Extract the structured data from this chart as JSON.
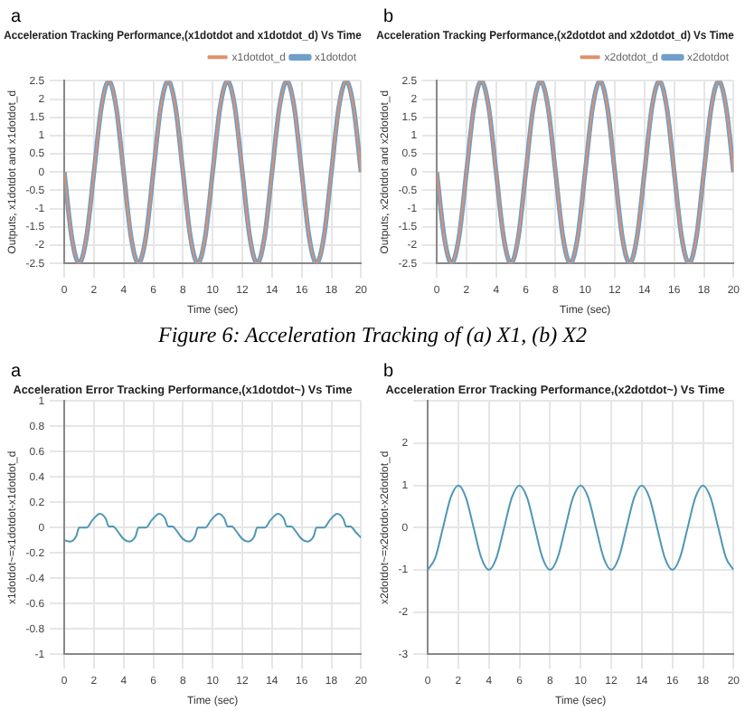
{
  "chart_data": [
    {
      "type": "line",
      "title": "Acceleration Tracking Performance,(x1dotdot and x1dotdot_d) Vs Time",
      "xlabel": "Time (sec)",
      "ylabel": "Outputs, x1dotdot and x1dotdot_d",
      "annotations": [
        "a",
        "Figure 6: Acceleration Tracking of (a) X1, (b) X2"
      ],
      "legend": "top right",
      "grid": true,
      "xlim": [
        0,
        20
      ],
      "xticks": [
        0,
        2,
        4,
        6,
        8,
        10,
        12,
        14,
        16,
        18,
        20
      ],
      "ylim": [
        -2.5,
        2.5
      ],
      "yticks": [
        -2.5,
        -2,
        -1.5,
        -1,
        -0.5,
        0,
        0.5,
        1,
        1.5,
        2,
        2.5
      ],
      "x": [
        0,
        0.5,
        1,
        1.5,
        2,
        2.5,
        3,
        3.5,
        4,
        4.5,
        5,
        5.5,
        6,
        6.5,
        7,
        7.5,
        8,
        8.5,
        9,
        9.5,
        10,
        10.5,
        11,
        11.5,
        12,
        12.5,
        13,
        13.5,
        14,
        14.5,
        15,
        15.5,
        16,
        16.5,
        17,
        17.5,
        18,
        18.5,
        19,
        19.5,
        20
      ],
      "series": [
        {
          "name": "x1dotdot",
          "color": "#6f9fc8",
          "values": [
            0,
            -1.77,
            -2.5,
            -1.77,
            0,
            1.77,
            2.5,
            1.77,
            0,
            -1.77,
            -2.5,
            -1.77,
            0,
            1.77,
            2.5,
            1.77,
            0,
            -1.77,
            -2.5,
            -1.77,
            0,
            1.77,
            2.5,
            1.77,
            0,
            -1.77,
            -2.5,
            -1.77,
            0,
            1.77,
            2.5,
            1.77,
            0,
            -1.77,
            -2.5,
            -1.77,
            0,
            1.77,
            2.5,
            1.77,
            0
          ]
        },
        {
          "name": "x1dotdot_d",
          "color": "#e0906a",
          "values": [
            0,
            -1.77,
            -2.5,
            -1.77,
            0,
            1.77,
            2.5,
            1.77,
            0,
            -1.77,
            -2.5,
            -1.77,
            0,
            1.77,
            2.5,
            1.77,
            0,
            -1.77,
            -2.5,
            -1.77,
            0,
            1.77,
            2.5,
            1.77,
            0,
            -1.77,
            -2.5,
            -1.77,
            0,
            1.77,
            2.5,
            1.77,
            0,
            -1.77,
            -2.5,
            -1.77,
            0,
            1.77,
            2.5,
            1.77,
            0
          ]
        }
      ]
    },
    {
      "type": "line",
      "title": "Acceleration Tracking Performance,(x2dotdot and x2dotdot_d) Vs Time",
      "xlabel": "Time (sec)",
      "ylabel": "Outputs, x2dotdot and x2dotdot_d",
      "annotations": [
        "b"
      ],
      "legend": "top right",
      "grid": true,
      "xlim": [
        0,
        20
      ],
      "xticks": [
        0,
        2,
        4,
        6,
        8,
        10,
        12,
        14,
        16,
        18,
        20
      ],
      "ylim": [
        -2.5,
        2.5
      ],
      "yticks": [
        -2.5,
        -2,
        -1.5,
        -1,
        -0.5,
        0,
        0.5,
        1,
        1.5,
        2,
        2.5
      ],
      "x": [
        0,
        0.5,
        1,
        1.5,
        2,
        2.5,
        3,
        3.5,
        4,
        4.5,
        5,
        5.5,
        6,
        6.5,
        7,
        7.5,
        8,
        8.5,
        9,
        9.5,
        10,
        10.5,
        11,
        11.5,
        12,
        12.5,
        13,
        13.5,
        14,
        14.5,
        15,
        15.5,
        16,
        16.5,
        17,
        17.5,
        18,
        18.5,
        19,
        19.5,
        20
      ],
      "series": [
        {
          "name": "x2dotdot",
          "color": "#6f9fc8",
          "values": [
            0,
            -1.77,
            -2.5,
            -1.77,
            0,
            1.77,
            2.5,
            1.77,
            0,
            -1.77,
            -2.5,
            -1.77,
            0,
            1.77,
            2.5,
            1.77,
            0,
            -1.77,
            -2.5,
            -1.77,
            0,
            1.77,
            2.5,
            1.77,
            0,
            -1.77,
            -2.5,
            -1.77,
            0,
            1.77,
            2.5,
            1.77,
            0,
            -1.77,
            -2.5,
            -1.77,
            0,
            1.77,
            2.5,
            1.77,
            0
          ]
        },
        {
          "name": "x2dotdot_d",
          "color": "#e0906a",
          "values": [
            0,
            -1.77,
            -2.5,
            -1.77,
            0,
            1.77,
            2.5,
            1.77,
            0,
            -1.77,
            -2.5,
            -1.77,
            0,
            1.77,
            2.5,
            1.77,
            0,
            -1.77,
            -2.5,
            -1.77,
            0,
            1.77,
            2.5,
            1.77,
            0,
            -1.77,
            -2.5,
            -1.77,
            0,
            1.77,
            2.5,
            1.77,
            0,
            -1.77,
            -2.5,
            -1.77,
            0,
            1.77,
            2.5,
            1.77,
            0
          ]
        }
      ]
    },
    {
      "type": "line",
      "title": "Acceleration Error Tracking Performance,(x1dotdot~) Vs Time",
      "xlabel": "Time (sec)",
      "ylabel": "x1dotdot~=x1dotdot-x1dotdot_d",
      "annotations": [
        "a"
      ],
      "grid": true,
      "xlim": [
        0,
        20
      ],
      "xticks": [
        0,
        2,
        4,
        6,
        8,
        10,
        12,
        14,
        16,
        18,
        20
      ],
      "ylim": [
        -1,
        1
      ],
      "yticks": [
        -1,
        -0.8,
        -0.6,
        -0.4,
        -0.2,
        0,
        0.2,
        0.4,
        0.6,
        0.8,
        1
      ],
      "x": [
        0,
        0.4,
        0.8,
        1,
        1.5,
        1.9,
        2.4,
        2.8,
        3,
        3.3,
        3.6,
        4,
        4.4,
        4.8,
        5,
        5.5,
        5.9,
        6.4,
        6.8,
        7,
        7.3,
        7.6,
        8,
        8.4,
        8.8,
        9,
        9.5,
        9.9,
        10.4,
        10.8,
        11,
        11.3,
        11.6,
        12,
        12.4,
        12.8,
        13,
        13.5,
        13.9,
        14.4,
        14.8,
        15,
        15.3,
        15.6,
        16,
        16.4,
        16.8,
        17,
        17.5,
        17.9,
        18.4,
        18.8,
        19,
        19.3,
        19.6,
        20
      ],
      "series": [
        {
          "color": "#4f97b5",
          "values": [
            -0.1,
            -0.11,
            -0.07,
            0,
            0,
            0.06,
            0.11,
            0.07,
            0.01,
            0.01,
            -0.03,
            -0.09,
            -0.11,
            -0.07,
            0,
            0,
            0.06,
            0.11,
            0.07,
            0.01,
            0.01,
            -0.03,
            -0.09,
            -0.11,
            -0.07,
            0,
            0,
            0.06,
            0.11,
            0.07,
            0.01,
            0.01,
            -0.03,
            -0.09,
            -0.11,
            -0.07,
            0,
            0,
            0.06,
            0.11,
            0.07,
            0.01,
            0.01,
            -0.03,
            -0.09,
            -0.11,
            -0.07,
            0,
            0,
            0.06,
            0.11,
            0.07,
            0.01,
            0.01,
            -0.03,
            -0.08
          ]
        }
      ]
    },
    {
      "type": "line",
      "title": "Acceleration Error Tracking Performance,(x2dotdot~) Vs Time",
      "xlabel": "Time (sec)",
      "ylabel": "x2dotdot~=x2dotdot-x2dotdot_d",
      "annotations": [
        "b"
      ],
      "grid": true,
      "xlim": [
        0,
        20
      ],
      "xticks": [
        0,
        2,
        4,
        6,
        8,
        10,
        12,
        14,
        16,
        18,
        20
      ],
      "ylim": [
        -3,
        3
      ],
      "yticks": [
        -3,
        -2,
        -1,
        0,
        1,
        2,
        {
          "value": 3,
          "label": null
        }
      ],
      "x": [
        0,
        0.5,
        1,
        1.5,
        2,
        2.5,
        3,
        3.5,
        4,
        4.5,
        5,
        5.5,
        6,
        6.5,
        7,
        7.5,
        8,
        8.5,
        9,
        9.5,
        10,
        10.5,
        11,
        11.5,
        12,
        12.5,
        13,
        13.5,
        14,
        14.5,
        15,
        15.5,
        16,
        16.5,
        17,
        17.5,
        18,
        18.5,
        19,
        19.5,
        20
      ],
      "series": [
        {
          "color": "#4f97b5",
          "values": [
            -1,
            -0.71,
            0,
            0.71,
            1,
            0.71,
            0,
            -0.71,
            -1,
            -0.71,
            0,
            0.71,
            1,
            0.71,
            0,
            -0.71,
            -1,
            -0.71,
            0,
            0.71,
            1,
            0.71,
            0,
            -0.71,
            -1,
            -0.71,
            0,
            0.71,
            1,
            0.71,
            0,
            -0.71,
            -1,
            -0.71,
            0,
            0.71,
            1,
            0.71,
            0,
            -0.71,
            -1
          ]
        }
      ]
    }
  ]
}
